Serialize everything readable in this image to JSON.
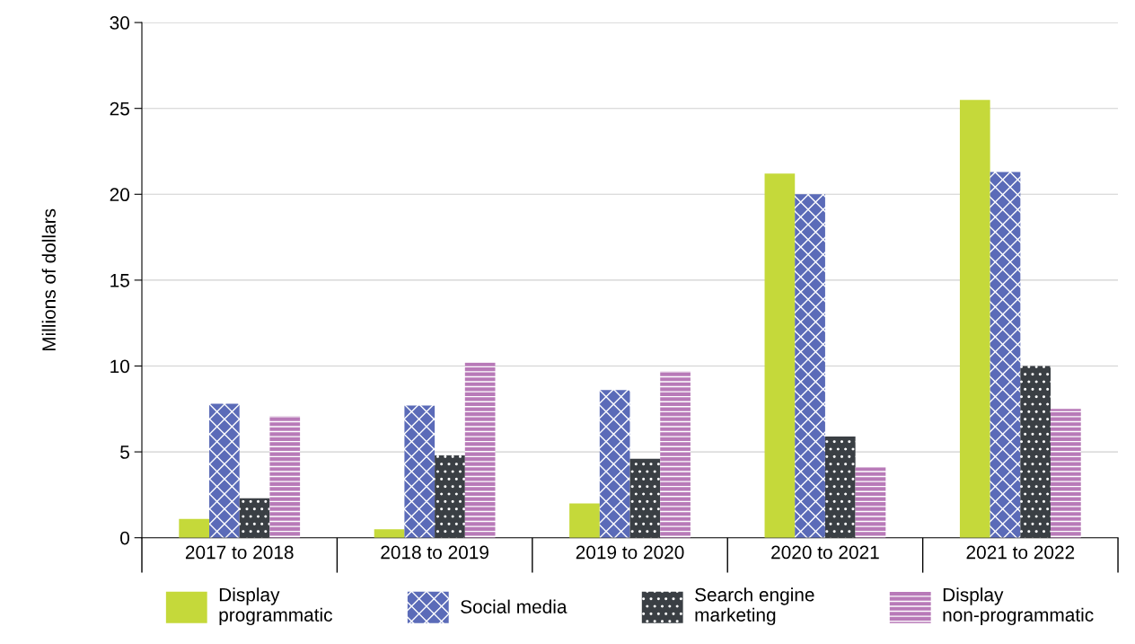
{
  "chart_data": {
    "type": "bar",
    "ylabel": "Millions of dollars",
    "categories": [
      "2017 to 2018",
      "2018 to 2019",
      "2019 to 2020",
      "2020 to 2021",
      "2021 to 2022"
    ],
    "series": [
      {
        "name": "Display\nprogrammatic",
        "color": "#c5d93a",
        "values": [
          1.1,
          0.5,
          2.0,
          21.2,
          25.5
        ]
      },
      {
        "name": "Social media",
        "color": "#5b6bb8",
        "values": [
          7.8,
          7.7,
          8.6,
          20.0,
          21.3
        ]
      },
      {
        "name": "Search engine\nmarketing",
        "color": "#3a3f44",
        "values": [
          2.3,
          4.8,
          4.6,
          5.9,
          10.0
        ]
      },
      {
        "name": "Display\nnon-programmatic",
        "color": "#b87ab8",
        "values": [
          7.1,
          10.2,
          9.7,
          4.1,
          7.5
        ]
      }
    ],
    "ylim": [
      0,
      30
    ],
    "yticks": [
      0,
      5,
      10,
      15,
      20,
      25,
      30
    ],
    "grid": "y",
    "legend": "bottom"
  }
}
